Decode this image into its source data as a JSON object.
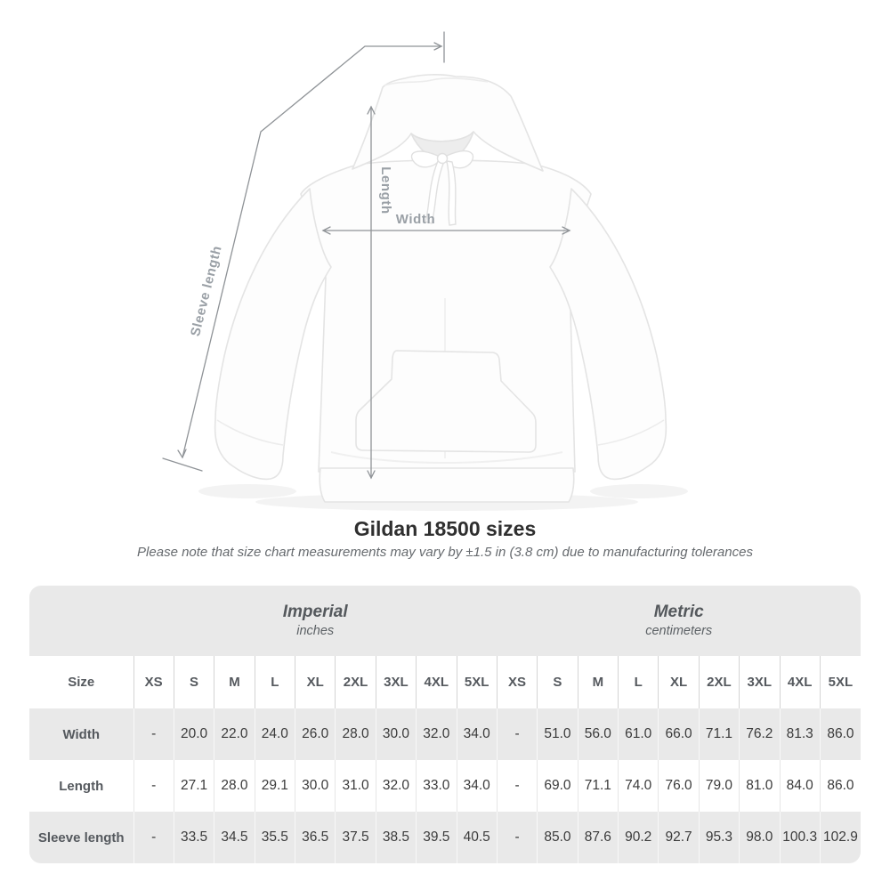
{
  "title": "Gildan 18500 sizes",
  "note": "Please note that size chart measurements may vary by ±1.5 in (3.8 cm) due to manufacturing tolerances",
  "diagram": {
    "labels": {
      "sleeve": "Sleeve length",
      "length": "Length",
      "width": "Width"
    },
    "line_color": "#8f9397",
    "label_color": "#9aa0a6",
    "garment_fill": "#fdfdfd",
    "garment_stroke": "#e4e4e4"
  },
  "table": {
    "size_header": "Size",
    "groups": [
      {
        "label": "Imperial",
        "sublabel": "inches"
      },
      {
        "label": "Metric",
        "sublabel": "centimeters"
      }
    ],
    "sizes": [
      "XS",
      "S",
      "M",
      "L",
      "XL",
      "2XL",
      "3XL",
      "4XL",
      "5XL"
    ],
    "rows": [
      {
        "label": "Width",
        "imperial": [
          "-",
          "20.0",
          "22.0",
          "24.0",
          "26.0",
          "28.0",
          "30.0",
          "32.0",
          "34.0"
        ],
        "metric": [
          "-",
          "51.0",
          "56.0",
          "61.0",
          "66.0",
          "71.1",
          "76.2",
          "81.3",
          "86.0"
        ]
      },
      {
        "label": "Length",
        "imperial": [
          "-",
          "27.1",
          "28.0",
          "29.1",
          "30.0",
          "31.0",
          "32.0",
          "33.0",
          "34.0"
        ],
        "metric": [
          "-",
          "69.0",
          "71.1",
          "74.0",
          "76.0",
          "79.0",
          "81.0",
          "84.0",
          "86.0"
        ]
      },
      {
        "label": "Sleeve length",
        "imperial": [
          "-",
          "33.5",
          "34.5",
          "35.5",
          "36.5",
          "37.5",
          "38.5",
          "39.5",
          "40.5"
        ],
        "metric": [
          "-",
          "85.0",
          "87.6",
          "90.2",
          "92.7",
          "95.3",
          "98.0",
          "100.3",
          "102.9"
        ]
      }
    ],
    "colors": {
      "header_bg": "#e9e9e9",
      "row_alt_bg": "#e9e9e9",
      "row_bg": "#ffffff",
      "divider": "#d4d4d4",
      "label_color": "#55595e",
      "value_color": "#3b3b3b"
    }
  },
  "chart_data": {
    "type": "table",
    "title": "Gildan 18500 sizes",
    "note": "Please note that size chart measurements may vary by ±1.5 in (3.8 cm) due to manufacturing tolerances",
    "column_groups": [
      {
        "name": "Imperial",
        "unit": "inches"
      },
      {
        "name": "Metric",
        "unit": "centimeters"
      }
    ],
    "sizes": [
      "XS",
      "S",
      "M",
      "L",
      "XL",
      "2XL",
      "3XL",
      "4XL",
      "5XL"
    ],
    "measurements": [
      {
        "label": "Width",
        "imperial_in": [
          null,
          20.0,
          22.0,
          24.0,
          26.0,
          28.0,
          30.0,
          32.0,
          34.0
        ],
        "metric_cm": [
          null,
          51.0,
          56.0,
          61.0,
          66.0,
          71.1,
          76.2,
          81.3,
          86.0
        ]
      },
      {
        "label": "Length",
        "imperial_in": [
          null,
          27.1,
          28.0,
          29.1,
          30.0,
          31.0,
          32.0,
          33.0,
          34.0
        ],
        "metric_cm": [
          null,
          69.0,
          71.1,
          74.0,
          76.0,
          79.0,
          81.0,
          84.0,
          86.0
        ]
      },
      {
        "label": "Sleeve length",
        "imperial_in": [
          null,
          33.5,
          34.5,
          35.5,
          36.5,
          37.5,
          38.5,
          39.5,
          40.5
        ],
        "metric_cm": [
          null,
          85.0,
          87.6,
          90.2,
          92.7,
          95.3,
          98.0,
          100.3,
          102.9
        ]
      }
    ]
  }
}
